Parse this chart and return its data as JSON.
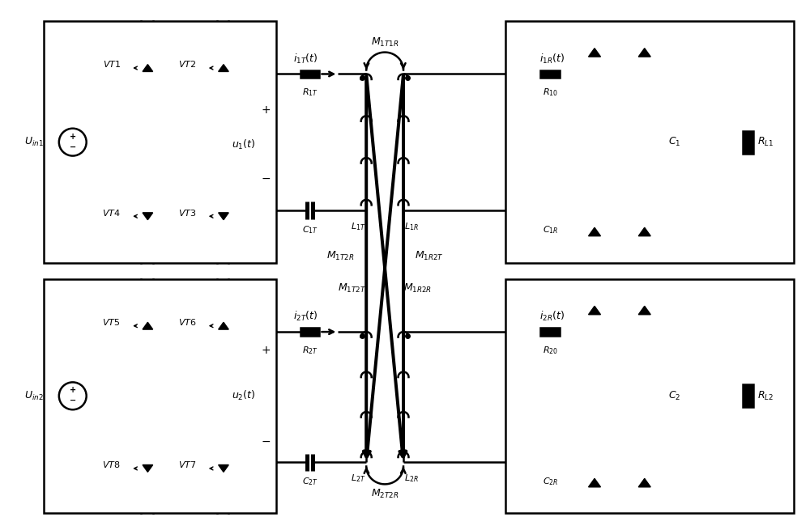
{
  "bg_color": "#ffffff",
  "lc": "#000000",
  "lw": 1.8,
  "fig_w": 10.0,
  "fig_h": 6.55
}
